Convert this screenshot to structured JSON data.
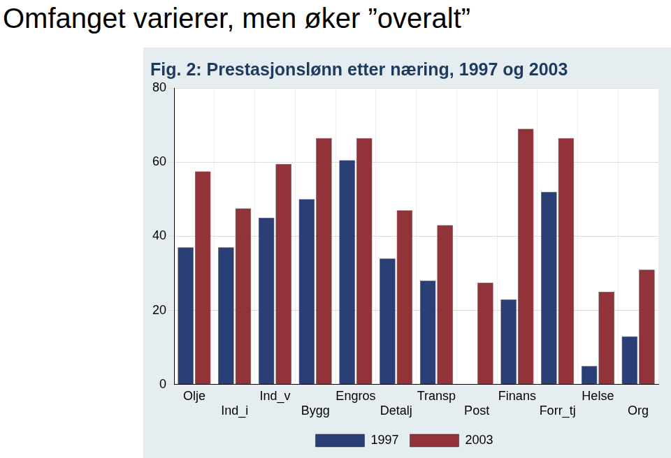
{
  "page_title": "Omfanget varierer, men øker ”overalt”",
  "chart_data": {
    "type": "bar",
    "title": "Fig. 2: Prestasjonslønn etter næring, 1997 og 2003",
    "categories": [
      "Olje",
      "Ind_i",
      "Ind_v",
      "Bygg",
      "Engros",
      "Detalj",
      "Transp",
      "Post",
      "Finans",
      "Forr_tj",
      "Helse",
      "Org"
    ],
    "series": [
      {
        "name": "1997",
        "color": "#2a3f75",
        "values": [
          37,
          37,
          45,
          50,
          60.5,
          34,
          28,
          null,
          23,
          52,
          5,
          13
        ]
      },
      {
        "name": "2003",
        "color": "#913339",
        "values": [
          57.5,
          47.5,
          59.5,
          66.5,
          66.5,
          47,
          43,
          27.5,
          69,
          66.5,
          25,
          31
        ]
      }
    ],
    "ylim": [
      0,
      80
    ],
    "yticks": [
      0,
      20,
      40,
      60,
      80
    ],
    "grid": true,
    "legend": "bottom"
  }
}
